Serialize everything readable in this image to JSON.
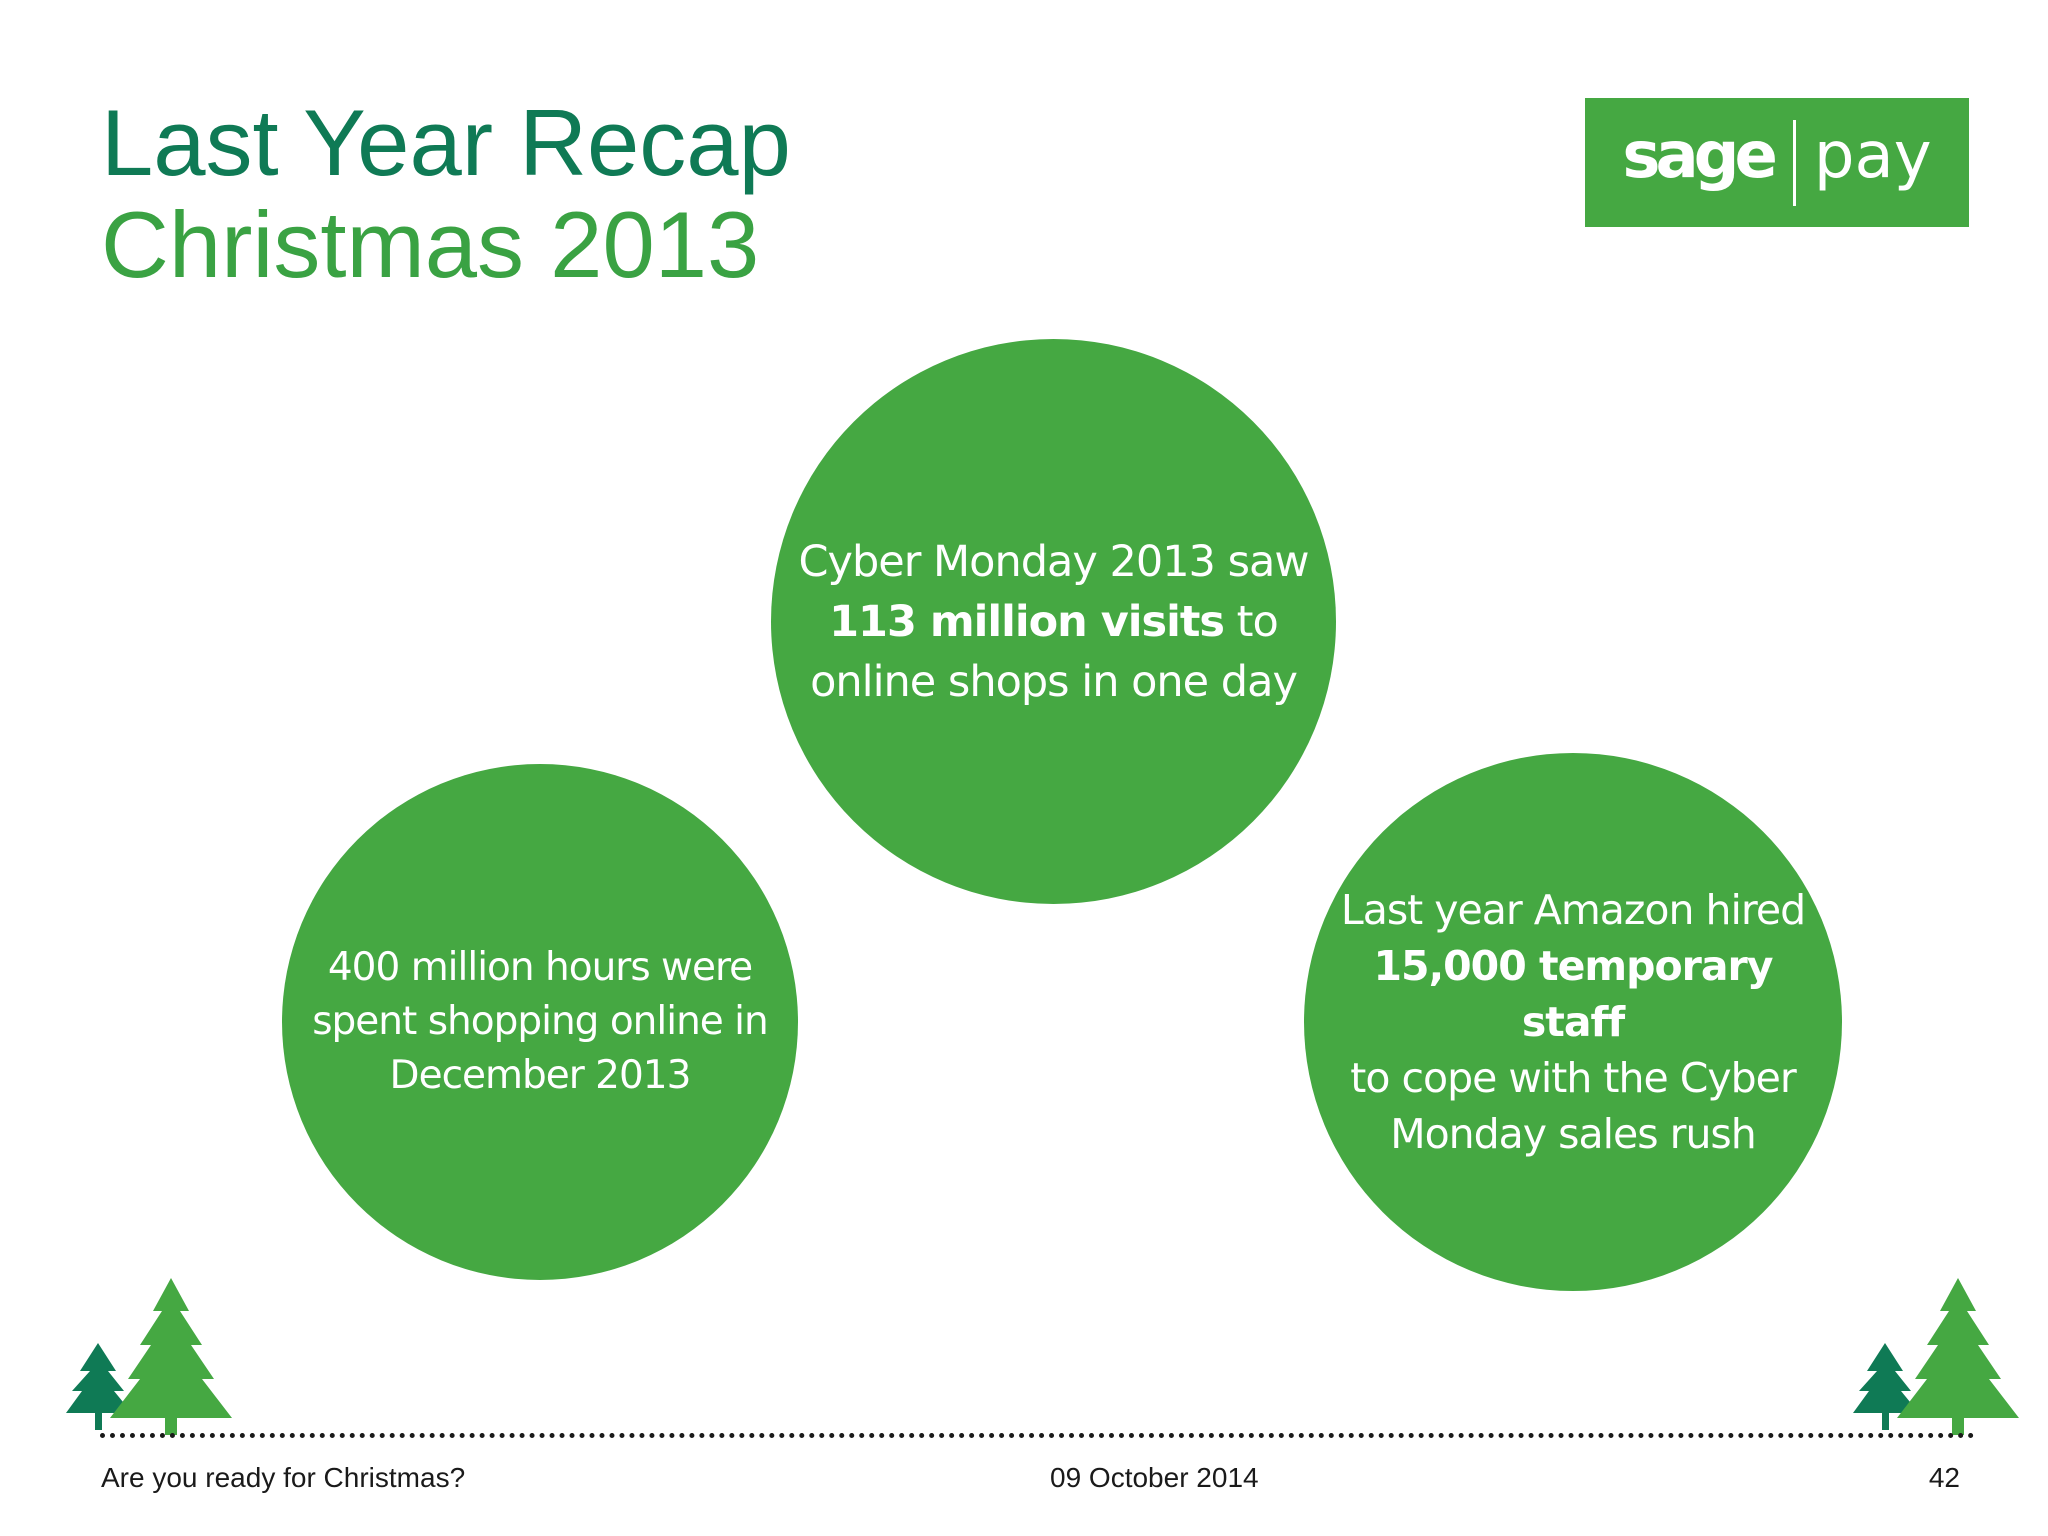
{
  "header": {
    "title": "Last Year Recap",
    "subtitle": "Christmas 2013"
  },
  "logo": {
    "left": "sage",
    "right": "pay",
    "color": "#45a842"
  },
  "bubbles": [
    {
      "line1": "Cyber Monday 2013 saw",
      "bold": "113 million visits",
      "after_bold": " to",
      "line3": "online shops in one day"
    },
    {
      "line1": "400 million hours were",
      "line2": "spent shopping online in",
      "line3": "December 2013"
    },
    {
      "line1": "Last year Amazon hired",
      "bold": "15,000 temporary staff",
      "line3": "to cope with the Cyber",
      "line4": "Monday sales rush"
    }
  ],
  "footer": {
    "left": "Are you ready for Christmas?",
    "date": "09 October 2014",
    "page": "42"
  },
  "colors": {
    "title": "#0f7a55",
    "subtitle": "#3aa243",
    "bubble": "#45a842",
    "tree_dark": "#0f7a55",
    "tree_light": "#45a842"
  },
  "icons": [
    "tree-icon"
  ]
}
